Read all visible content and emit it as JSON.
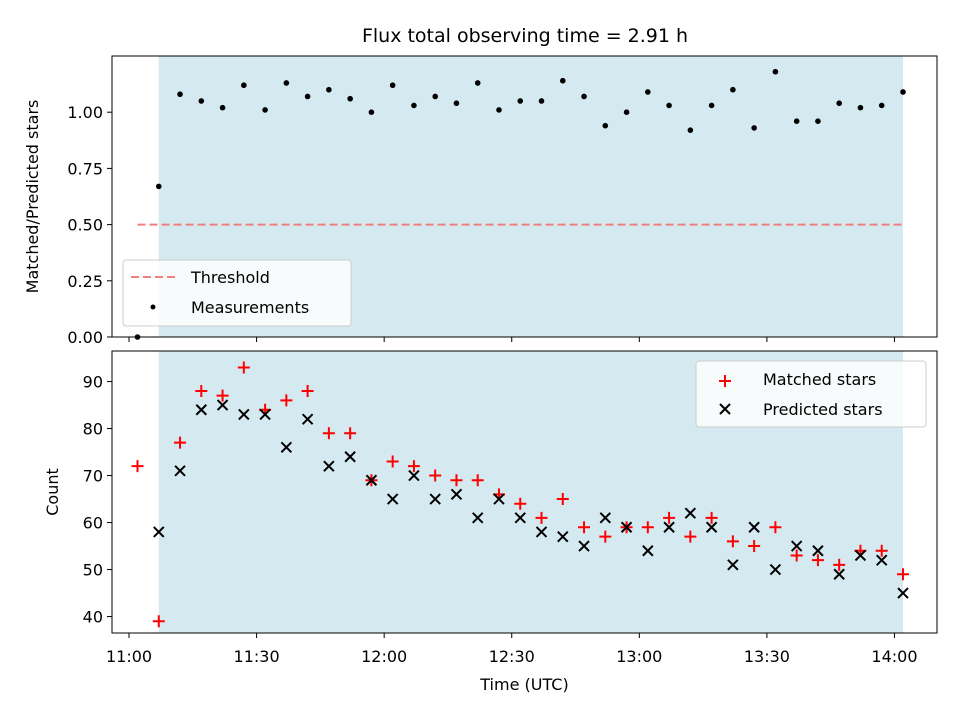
{
  "chart_data": [
    {
      "type": "scatter",
      "title": "Flux total observing time = 2.91 h",
      "xlabel": "",
      "ylabel": "Matched/Predicted stars",
      "x_range": [
        "10:56",
        "14:10"
      ],
      "ylim": [
        0,
        1.25
      ],
      "yticks": [
        "0.00",
        "0.25",
        "0.50",
        "0.75",
        "1.00"
      ],
      "ytick_values": [
        0,
        0.25,
        0.5,
        0.75,
        1.0
      ],
      "shaded_span": [
        "11:07",
        "14:02"
      ],
      "shade_color": "#d4eaf0",
      "legend_position": "lower-left",
      "threshold": {
        "name": "Threshold",
        "value": 0.5,
        "x_range": [
          "11:02",
          "14:02"
        ],
        "color": "#f08080"
      },
      "series": [
        {
          "name": "Measurements",
          "color": "#000000",
          "x": [
            "11:02",
            "11:07",
            "11:12",
            "11:17",
            "11:22",
            "11:27",
            "11:32",
            "11:37",
            "11:42",
            "11:47",
            "11:52",
            "11:57",
            "12:02",
            "12:07",
            "12:12",
            "12:17",
            "12:22",
            "12:27",
            "12:32",
            "12:37",
            "12:42",
            "12:47",
            "12:52",
            "12:57",
            "13:02",
            "13:07",
            "13:12",
            "13:17",
            "13:22",
            "13:27",
            "13:32",
            "13:37",
            "13:42",
            "13:47",
            "13:52",
            "13:57",
            "14:02"
          ],
          "y": [
            0.0,
            0.67,
            1.08,
            1.05,
            1.02,
            1.12,
            1.01,
            1.13,
            1.07,
            1.1,
            1.06,
            1.0,
            1.12,
            1.03,
            1.07,
            1.04,
            1.13,
            1.01,
            1.05,
            1.05,
            1.14,
            1.07,
            0.94,
            1.0,
            1.09,
            1.03,
            0.92,
            1.03,
            1.1,
            0.93,
            1.18,
            0.96,
            0.96,
            1.04,
            1.02,
            1.03,
            1.09
          ]
        }
      ]
    },
    {
      "type": "scatter",
      "title": "",
      "xlabel": "Time (UTC)",
      "ylabel": "Count",
      "x_range": [
        "10:56",
        "14:10"
      ],
      "xticks": [
        "11:00",
        "11:30",
        "12:00",
        "12:30",
        "13:00",
        "13:30",
        "14:00"
      ],
      "ylim": [
        36.5,
        96.5
      ],
      "yticks": [
        "40",
        "50",
        "60",
        "70",
        "80",
        "90"
      ],
      "ytick_values": [
        40,
        50,
        60,
        70,
        80,
        90
      ],
      "shaded_span": [
        "11:07",
        "14:02"
      ],
      "shade_color": "#d4eaf0",
      "legend_position": "upper-right",
      "series": [
        {
          "name": "Matched stars",
          "marker": "plus",
          "color": "#ff0000",
          "x": [
            "11:02",
            "11:07",
            "11:12",
            "11:17",
            "11:22",
            "11:27",
            "11:32",
            "11:37",
            "11:42",
            "11:47",
            "11:52",
            "11:57",
            "12:02",
            "12:07",
            "12:12",
            "12:17",
            "12:22",
            "12:27",
            "12:32",
            "12:37",
            "12:42",
            "12:47",
            "12:52",
            "12:57",
            "13:02",
            "13:07",
            "13:12",
            "13:17",
            "13:22",
            "13:27",
            "13:32",
            "13:37",
            "13:42",
            "13:47",
            "13:52",
            "13:57",
            "14:02"
          ],
          "y": [
            72,
            39,
            77,
            88,
            87,
            93,
            84,
            86,
            88,
            79,
            79,
            69,
            73,
            72,
            70,
            69,
            69,
            66,
            64,
            61,
            65,
            59,
            57,
            59,
            59,
            61,
            57,
            61,
            56,
            55,
            59,
            53,
            52,
            51,
            54,
            54,
            49
          ]
        },
        {
          "name": "Predicted stars",
          "marker": "x",
          "color": "#000000",
          "x": [
            "11:07",
            "11:12",
            "11:17",
            "11:22",
            "11:27",
            "11:32",
            "11:37",
            "11:42",
            "11:47",
            "11:52",
            "11:57",
            "12:02",
            "12:07",
            "12:12",
            "12:17",
            "12:22",
            "12:27",
            "12:32",
            "12:37",
            "12:42",
            "12:47",
            "12:52",
            "12:57",
            "13:02",
            "13:07",
            "13:12",
            "13:17",
            "13:22",
            "13:27",
            "13:32",
            "13:37",
            "13:42",
            "13:47",
            "13:52",
            "13:57",
            "14:02"
          ],
          "y": [
            58,
            71,
            84,
            85,
            83,
            83,
            76,
            82,
            72,
            74,
            69,
            65,
            70,
            65,
            66,
            61,
            65,
            61,
            58,
            57,
            55,
            61,
            59,
            54,
            59,
            62,
            59,
            51,
            59,
            50,
            55,
            54,
            49,
            53,
            52,
            45
          ]
        }
      ]
    }
  ]
}
